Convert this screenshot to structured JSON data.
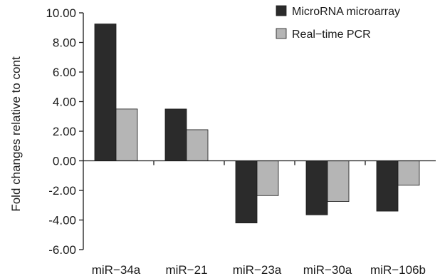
{
  "chart_data": {
    "type": "bar",
    "title": "",
    "xlabel": "",
    "ylabel": "Fold changes relative to cont",
    "ylim": [
      -6,
      10
    ],
    "ytick_step": 2,
    "yticks": [
      "10.00",
      "8.00",
      "6.00",
      "4.00",
      "2.00",
      "0.00",
      "-2.00",
      "-4.00",
      "-6.00"
    ],
    "categories": [
      "miR−34a",
      "miR−21",
      "miR−23a",
      "miR−30a",
      "miR−106b"
    ],
    "series": [
      {
        "name": "MicroRNA microarray",
        "color": "#2b2b2b",
        "values": [
          9.25,
          3.5,
          -4.2,
          -3.65,
          -3.4
        ]
      },
      {
        "name": "Real−time PCR",
        "color": "#b5b5b5",
        "values": [
          3.5,
          2.1,
          -2.35,
          -2.75,
          -1.65
        ]
      }
    ],
    "grid": false,
    "legend_position": "top-right"
  }
}
